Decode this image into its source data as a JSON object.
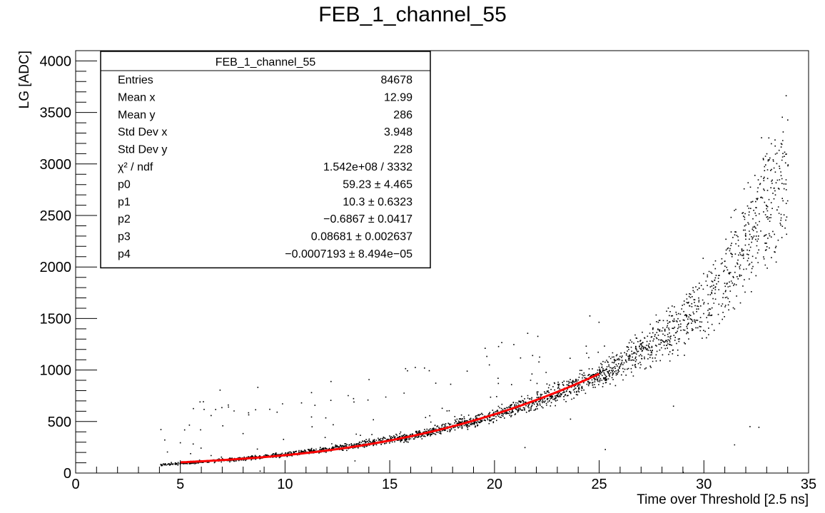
{
  "chart_data": {
    "type": "scatter",
    "title": "FEB_1_channel_55",
    "xlabel": "Time over Threshold [2.5 ns]",
    "ylabel": "LG [ADC]",
    "xlim": [
      0,
      35
    ],
    "ylim": [
      0,
      4100
    ],
    "x_ticks": [
      "0",
      "5",
      "10",
      "15",
      "20",
      "25",
      "30",
      "35"
    ],
    "y_ticks": [
      "0",
      "500",
      "1000",
      "1500",
      "2000",
      "2500",
      "3000",
      "3500",
      "4000"
    ],
    "grid": false,
    "fit": {
      "name": "pol4",
      "range": [
        5,
        25
      ],
      "color": "#ff0000",
      "p": [
        59.23,
        10.3,
        -0.6867,
        0.08681,
        -0.0007193
      ]
    },
    "main_band": [
      {
        "x": 4,
        "y": 85
      },
      {
        "x": 5,
        "y": 100
      },
      {
        "x": 8,
        "y": 145
      },
      {
        "x": 10,
        "y": 185
      },
      {
        "x": 12,
        "y": 235
      },
      {
        "x": 14,
        "y": 295
      },
      {
        "x": 15,
        "y": 330
      },
      {
        "x": 17,
        "y": 410
      },
      {
        "x": 20,
        "y": 570
      },
      {
        "x": 22,
        "y": 700
      },
      {
        "x": 24,
        "y": 870
      },
      {
        "x": 25,
        "y": 960
      },
      {
        "x": 26,
        "y": 1060
      },
      {
        "x": 28,
        "y": 1300
      },
      {
        "x": 30,
        "y": 1650
      },
      {
        "x": 31,
        "y": 1900
      },
      {
        "x": 32,
        "y": 2250
      },
      {
        "x": 33,
        "y": 2650
      },
      {
        "x": 34,
        "y": 3050
      }
    ],
    "colors": {
      "points": "#000000",
      "fit": "#ff0000",
      "axes": "#000000"
    },
    "stats_box": {
      "title": "FEB_1_channel_55",
      "rows": [
        {
          "label": "Entries",
          "value": "84678"
        },
        {
          "label": "Mean x",
          "value": "12.99"
        },
        {
          "label": "Mean y",
          "value": "286"
        },
        {
          "label": "Std Dev x",
          "value": "3.948"
        },
        {
          "label": "Std Dev y",
          "value": "228"
        },
        {
          "label": "χ² / ndf",
          "value": "1.542e+08 / 3332"
        },
        {
          "label": "p0",
          "value": "59.23 ± 4.465"
        },
        {
          "label": "p1",
          "value": "10.3 ± 0.6323"
        },
        {
          "label": "p2",
          "value": "−0.6867 ± 0.0417"
        },
        {
          "label": "p3",
          "value": "0.08681 ± 0.002637"
        },
        {
          "label": "p4",
          "value": "−0.0007193 ± 8.494e−05"
        }
      ],
      "position": "top-left"
    }
  }
}
